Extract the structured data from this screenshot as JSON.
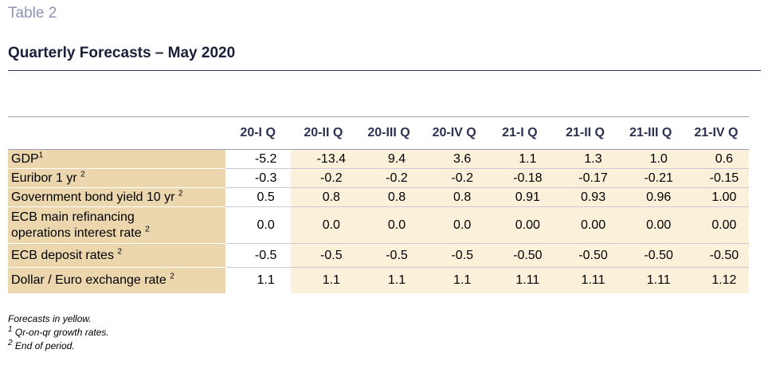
{
  "caption": "Table 2",
  "title": "Quarterly Forecasts – May 2020",
  "columns": [
    "20-I Q",
    "20-II Q",
    "20-III Q",
    "20-IV Q",
    "21-I Q",
    "21-II Q",
    "21-III Q",
    "21-IV Q"
  ],
  "rows": [
    {
      "label": "GDP",
      "sup": "1",
      "values": [
        "-5.2",
        "-13.4",
        "9.4",
        "3.6",
        "1.1",
        "1.3",
        "1.0",
        "0.6"
      ]
    },
    {
      "label": "Euribor 1 yr",
      "sup": "2",
      "values": [
        "-0.3",
        "-0.2",
        "-0.2",
        "-0.2",
        "-0.18",
        "-0.17",
        "-0.21",
        "-0.15"
      ]
    },
    {
      "label": "Government bond yield 10 yr",
      "sup": "2",
      "values": [
        "0.5",
        "0.8",
        "0.8",
        "0.8",
        "0.91",
        "0.93",
        "0.96",
        "1.00"
      ]
    },
    {
      "label_line1": "ECB main refinancing",
      "label_line2": "operations interest rate",
      "sup": "2",
      "values": [
        "0.0",
        "0.0",
        "0.0",
        "0.0",
        "0.00",
        "0.00",
        "0.00",
        "0.00"
      ]
    },
    {
      "label": "ECB deposit rates",
      "sup": "2",
      "values": [
        "-0.5",
        "-0.5",
        "-0.5",
        "-0.5",
        "-0.50",
        "-0.50",
        "-0.50",
        "-0.50"
      ]
    },
    {
      "label": "Dollar / Euro exchange rate",
      "sup": "2",
      "values": [
        "1.1",
        "1.1",
        "1.1",
        "1.1",
        "1.11",
        "1.11",
        "1.11",
        "1.12"
      ]
    }
  ],
  "notes": {
    "forecasts": "Forecasts in yellow.",
    "note1_mark": "1",
    "note1": "Qr-on-qr growth rates.",
    "note2_mark": "2",
    "note2": "End of period."
  },
  "colors": {
    "label_bg": "#ecd6ad",
    "forecast_bg": "#fbf0da",
    "caption": "#8c96b4",
    "header_text": "#2b3152"
  }
}
